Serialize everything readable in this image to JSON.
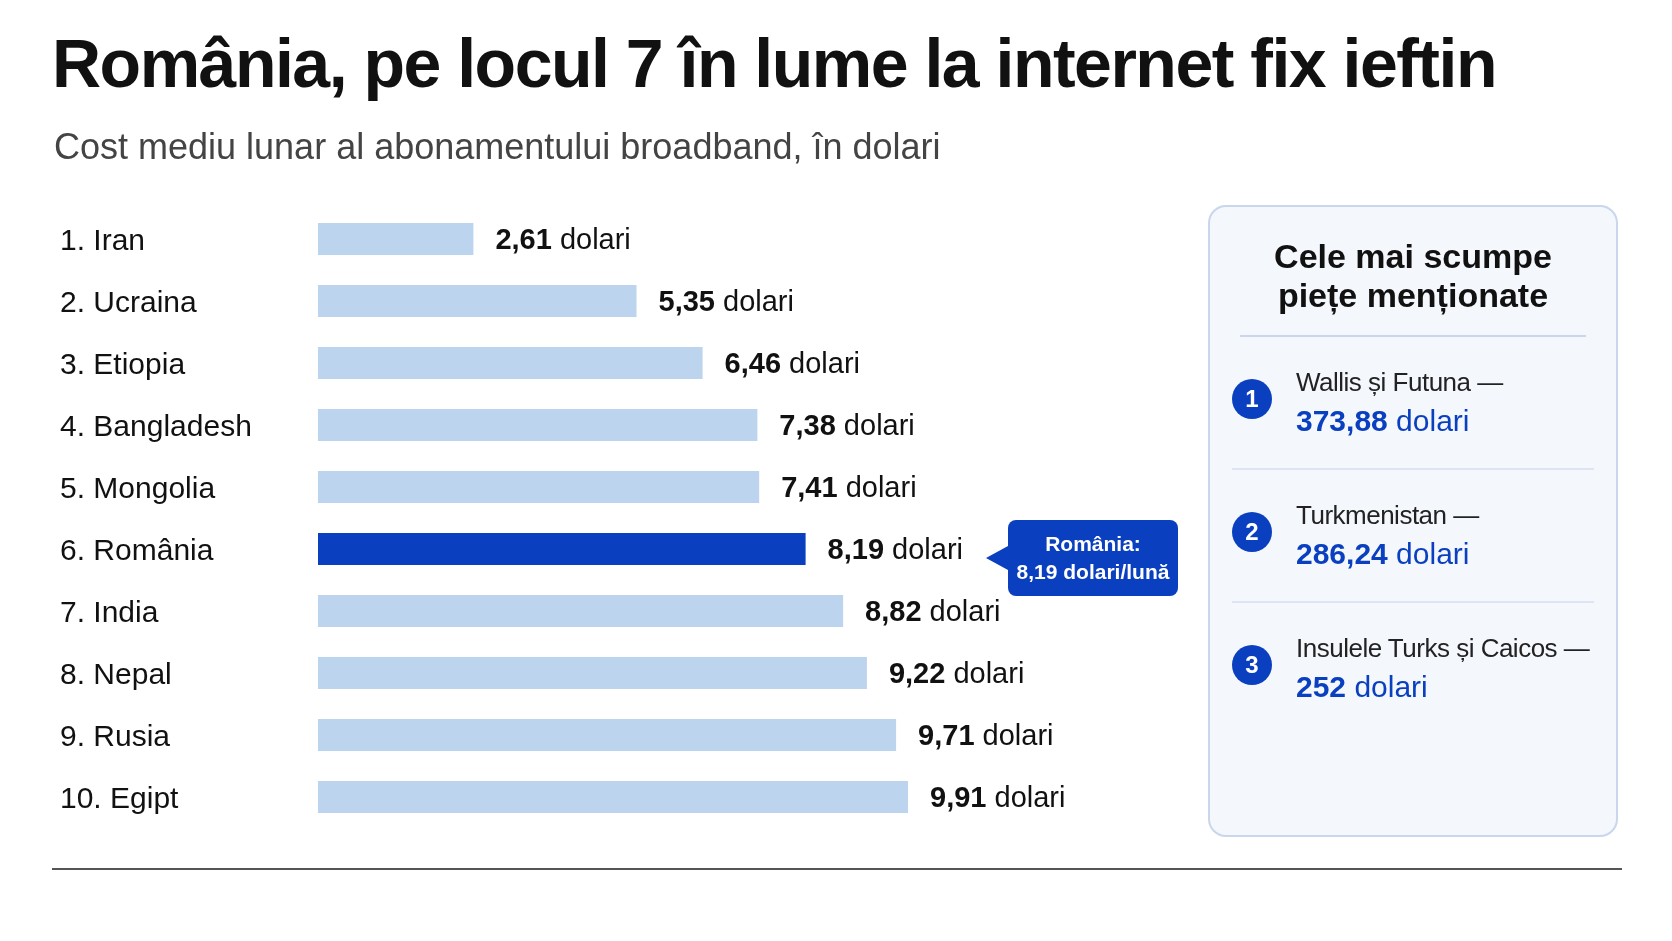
{
  "chart_data": {
    "type": "bar",
    "orientation": "horizontal",
    "title": "România, pe locul 7 în lume la internet fix ieftin",
    "subtitle": "Cost mediu lunar al abonamentului broadband, în dolari",
    "categories": [
      "1. Iran",
      "2. Ucraina",
      "3. Etiopia",
      "4. Bangladesh",
      "5. Mongolia",
      "6. România",
      "7. India",
      "8. Nepal",
      "9. Rusia",
      "10. Egipt"
    ],
    "values": [
      2.61,
      5.35,
      6.46,
      7.38,
      7.41,
      8.19,
      8.82,
      9.22,
      9.71,
      9.91
    ],
    "value_labels": [
      "2,61 dolari",
      "5,35 dolari",
      "6,46 dolari",
      "7,38 dolari",
      "7,41 dolari",
      "8,19 dolari",
      "8,82 dolari",
      "9,22 dolari",
      "9,71 dolari",
      "9,91 dolari"
    ],
    "colors": [
      "#bcd4ee",
      "#bcd4ee",
      "#bcd4ee",
      "#bcd4ee",
      "#bcd4ee",
      "#0a3fbf",
      "#bcd4ee",
      "#bcd4ee",
      "#bcd4ee",
      "#bcd4ee"
    ],
    "annotations": [
      "România:\n8,19 dolari/lună",
      "Cele mai scumpe piețe menționate",
      "1",
      "Wallis și Futuna —",
      "373,88 dolari",
      "2",
      "Turkmenistan —",
      "286,24 dolari",
      "3",
      "Insulele Turks și Caicos —",
      "252 dolari"
    ]
  }
}
